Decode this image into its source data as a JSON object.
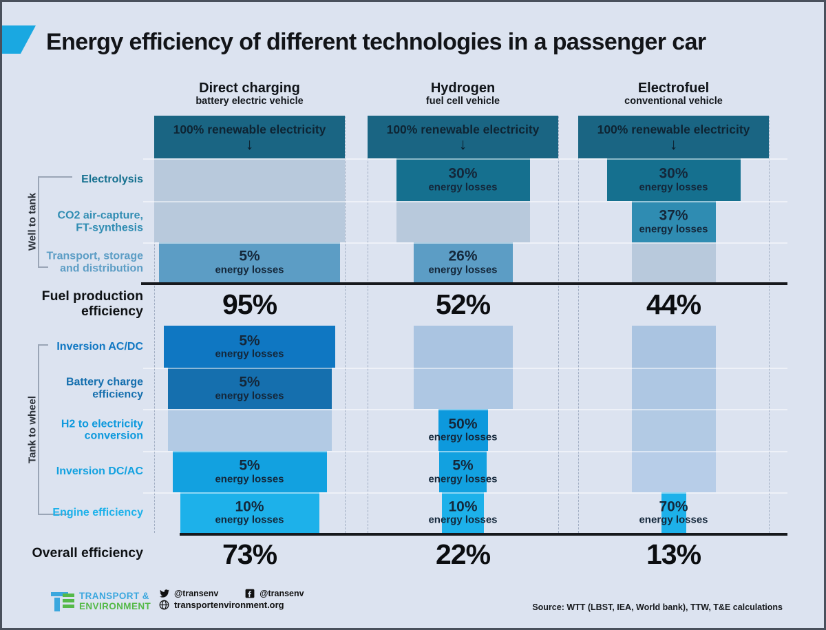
{
  "title": "Energy efficiency of different technologies in a passenger car",
  "labels": {
    "fuel_production": "Fuel production\nefficiency",
    "overall": "Overall efficiency"
  },
  "footer": {
    "org_line1": "TRANSPORT &",
    "org_line2": "ENVIRONMENT",
    "twitter_handle": "@transenv",
    "facebook_handle": "@transenv",
    "website": "transportenvironment.org",
    "source": "Source: WTT (LBST, IEA, World bank), TTW, T&E calculations"
  },
  "colors": {
    "background": "#dce3f0",
    "accent": "#1aa8e1",
    "logo_blue": "#3ba7de",
    "logo_green": "#55b948",
    "bar_text": "#14273a"
  },
  "chart_data": {
    "type": "funnel-comparison",
    "title": "Energy efficiency of different technologies in a passenger car",
    "unit": "% of original renewable electricity remaining (bar width)",
    "input_label": "100% renewable electricity",
    "loss_label": "energy losses",
    "input_bar_color": "#1a6583",
    "groups": [
      {
        "name": "Well to tank",
        "rows": [
          0,
          1,
          2
        ]
      },
      {
        "name": "Tank to wheel",
        "rows": [
          3,
          4,
          5,
          6,
          7
        ]
      }
    ],
    "rows": [
      {
        "label": "Electrolysis",
        "color": "#15708f",
        "pale": "#b8c9dc"
      },
      {
        "label": "CO2 air-capture,\nFT-synthesis",
        "color": "#2f8cb2",
        "pale": "#b8c9dc"
      },
      {
        "label": "Transport, storage\nand distribution",
        "color": "#5c9dc5",
        "pale": "#b8c9dc"
      },
      {
        "label": "Inversion AC/DC",
        "color": "#0f77c2",
        "pale": "#aac4e1"
      },
      {
        "label": "Battery charge\nefficiency",
        "color": "#156fae",
        "pale": "#aec7e3"
      },
      {
        "label": "H2 to electricity\nconversion",
        "color": "#0d99dd",
        "pale": "#b2cae4"
      },
      {
        "label": "Inversion DC/AC",
        "color": "#12a1e0",
        "pale": "#b7cde8"
      },
      {
        "label": "Engine efficiency",
        "color": "#1db1ea",
        "pale": "#bbd0ea"
      }
    ],
    "columns": [
      {
        "name": "Direct charging",
        "vehicle": "battery electric vehicle",
        "steps": [
          {
            "loss": null,
            "remaining": 100
          },
          {
            "loss": null,
            "remaining": 100
          },
          {
            "loss": 5,
            "remaining": 95
          },
          {
            "loss": 5,
            "remaining": 90
          },
          {
            "loss": 5,
            "remaining": 86
          },
          {
            "loss": null,
            "remaining": 86
          },
          {
            "loss": 5,
            "remaining": 81
          },
          {
            "loss": 10,
            "remaining": 73
          }
        ],
        "fuel_production_efficiency": 95,
        "overall_efficiency": 73
      },
      {
        "name": "Hydrogen",
        "vehicle": "fuel cell vehicle",
        "steps": [
          {
            "loss": 30,
            "remaining": 70
          },
          {
            "loss": null,
            "remaining": 70
          },
          {
            "loss": 26,
            "remaining": 52
          },
          {
            "loss": null,
            "remaining": 52
          },
          {
            "loss": null,
            "remaining": 52
          },
          {
            "loss": 50,
            "remaining": 26
          },
          {
            "loss": 5,
            "remaining": 25
          },
          {
            "loss": 10,
            "remaining": 22
          }
        ],
        "fuel_production_efficiency": 52,
        "overall_efficiency": 22
      },
      {
        "name": "Electrofuel",
        "vehicle": "conventional vehicle",
        "steps": [
          {
            "loss": 30,
            "remaining": 70
          },
          {
            "loss": 37,
            "remaining": 44
          },
          {
            "loss": null,
            "remaining": 44
          },
          {
            "loss": null,
            "remaining": 44
          },
          {
            "loss": null,
            "remaining": 44
          },
          {
            "loss": null,
            "remaining": 44
          },
          {
            "loss": null,
            "remaining": 44
          },
          {
            "loss": 70,
            "remaining": 13
          }
        ],
        "fuel_production_efficiency": 44,
        "overall_efficiency": 13
      }
    ]
  }
}
